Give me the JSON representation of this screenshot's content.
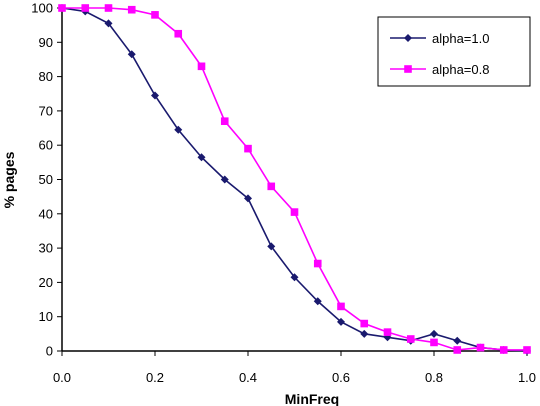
{
  "chart_data": {
    "type": "line",
    "title": "",
    "xlabel": "MinFreq",
    "ylabel": "% pages",
    "xlim": [
      0,
      1
    ],
    "ylim": [
      0,
      100
    ],
    "x_ticks": [
      "0.0",
      "0.2",
      "0.4",
      "0.6",
      "0.8",
      "1.0"
    ],
    "y_ticks": [
      "0",
      "10",
      "20",
      "30",
      "40",
      "50",
      "60",
      "70",
      "80",
      "90",
      "100"
    ],
    "grid": false,
    "legend_position": "top-right",
    "x": [
      0,
      0.05,
      0.1,
      0.15,
      0.2,
      0.25,
      0.3,
      0.35,
      0.4,
      0.45,
      0.5,
      0.55,
      0.6,
      0.65,
      0.7,
      0.75,
      0.8,
      0.85,
      0.9,
      0.95,
      1.0
    ],
    "series": [
      {
        "name": "alpha=1.0",
        "color": "#1a1a6e",
        "marker": "diamond",
        "values": [
          100,
          99,
          95.5,
          86.5,
          74.5,
          64.5,
          56.5,
          50,
          44.5,
          30.5,
          21.5,
          14.5,
          8.5,
          5,
          4,
          3,
          5,
          3,
          1,
          0.3,
          0
        ]
      },
      {
        "name": "alpha=0.8",
        "color": "#ff00ff",
        "marker": "square",
        "values": [
          100,
          100,
          100,
          99.5,
          98,
          92.5,
          83,
          67,
          59,
          48,
          40.5,
          25.5,
          13,
          8,
          5.5,
          3.5,
          2.5,
          0.3,
          1,
          0.3,
          0.3
        ]
      }
    ]
  }
}
